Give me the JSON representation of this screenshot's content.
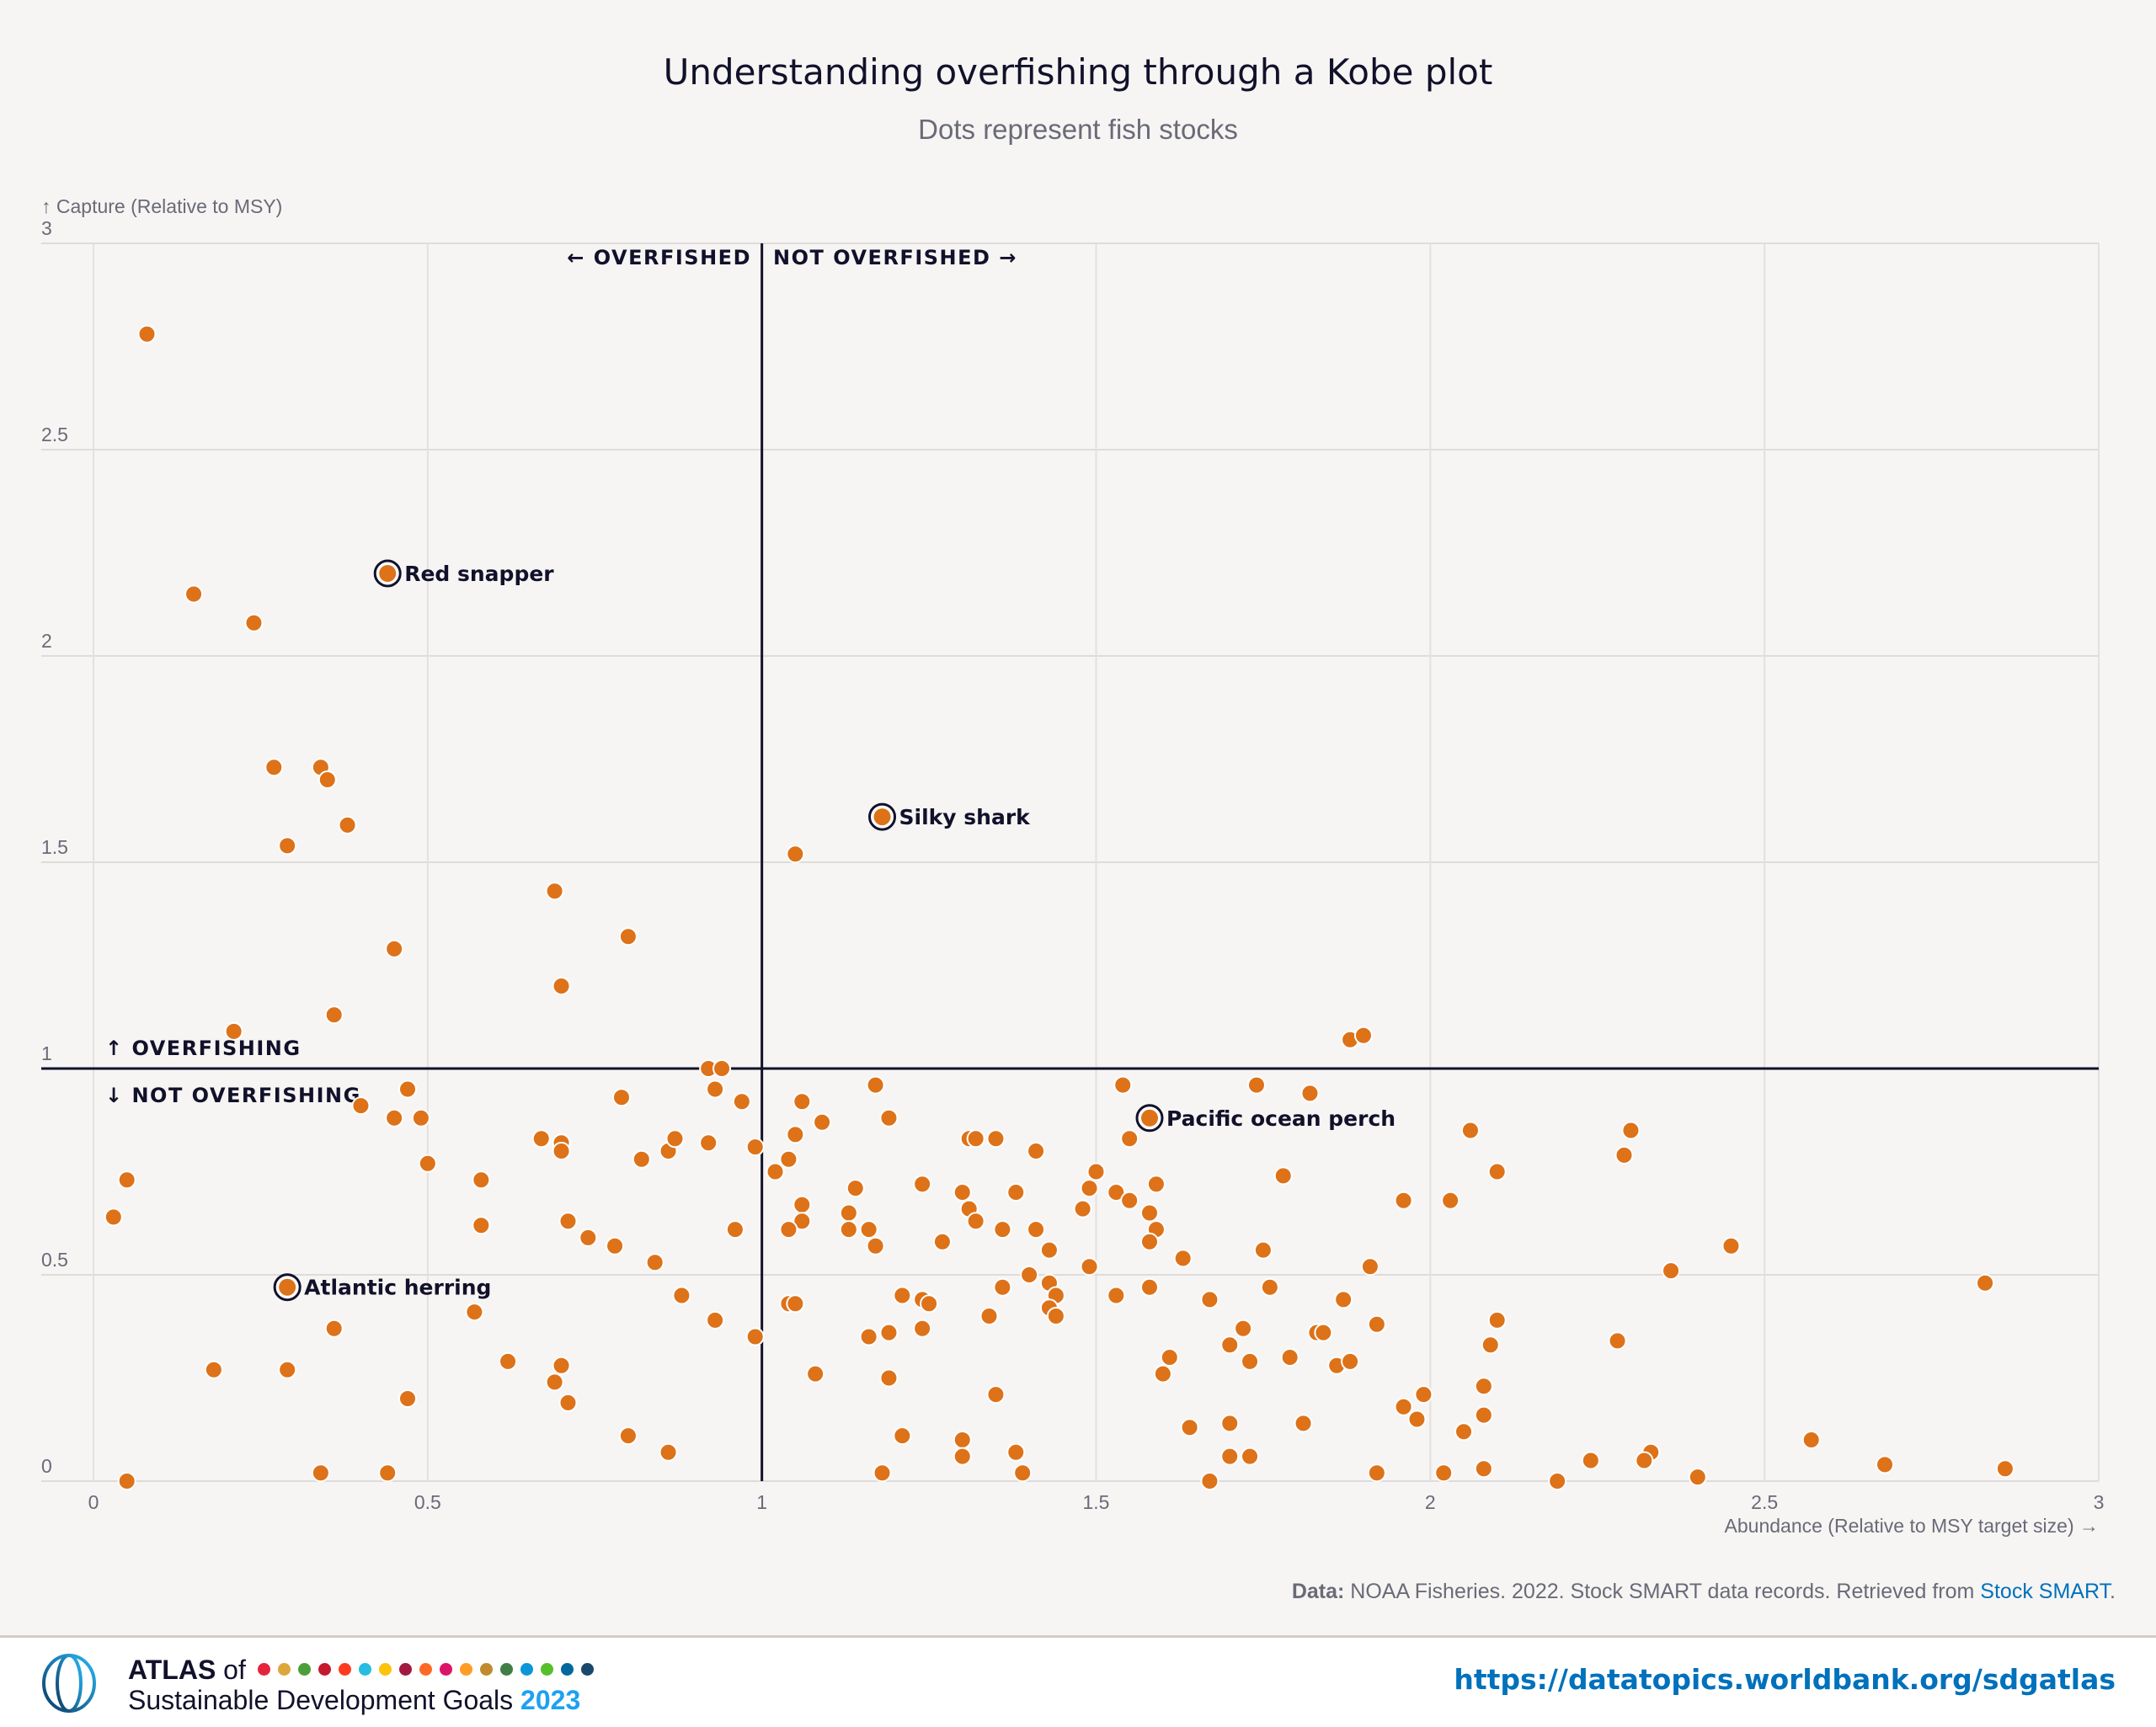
{
  "header": {
    "title": "Understanding overfishing through a Kobe plot",
    "subtitle": "Dots represent fish stocks"
  },
  "chart_data": {
    "type": "scatter",
    "title": "Understanding overfishing through a Kobe plot",
    "subtitle": "Dots represent fish stocks",
    "xlabel": "Abundance (Relative to MSY target size) →",
    "ylabel": "↑ Capture (Relative to MSY)",
    "xlim": [
      0,
      3
    ],
    "ylim": [
      0,
      3
    ],
    "x_ticks": [
      "0",
      "0.5",
      "1",
      "1.5",
      "2",
      "2.5",
      "3"
    ],
    "y_ticks": [
      "0",
      "0.5",
      "1",
      "1.5",
      "2",
      "2.5",
      "3"
    ],
    "grid": true,
    "reference_lines": {
      "x": 1,
      "y": 1
    },
    "quadrant_labels": {
      "overfished": "← OVERFISHED",
      "not_overfished": "NOT OVERFISHED →",
      "overfishing": "↑ OVERFISHING",
      "not_overfishing": "↓ NOT OVERFISHING"
    },
    "point_color": "#dd7219",
    "annotation_ring_color": "#12112b",
    "annotations": [
      {
        "label": "Red snapper",
        "x": 0.44,
        "y": 2.2
      },
      {
        "label": "Silky shark",
        "x": 1.18,
        "y": 1.61
      },
      {
        "label": "Pacific ocean perch",
        "x": 1.58,
        "y": 0.88
      },
      {
        "label": "Atlantic herring",
        "x": 0.29,
        "y": 0.47
      }
    ],
    "points": [
      [
        0.08,
        2.78
      ],
      [
        0.15,
        2.15
      ],
      [
        0.24,
        2.08
      ],
      [
        0.27,
        1.73
      ],
      [
        0.34,
        1.73
      ],
      [
        0.35,
        1.7
      ],
      [
        0.29,
        1.54
      ],
      [
        0.38,
        1.59
      ],
      [
        0.69,
        1.43
      ],
      [
        0.8,
        1.32
      ],
      [
        0.45,
        1.29
      ],
      [
        0.7,
        1.2
      ],
      [
        0.36,
        1.13
      ],
      [
        0.21,
        1.09
      ],
      [
        1.05,
        1.52
      ],
      [
        1.88,
        1.07
      ],
      [
        1.9,
        1.08
      ],
      [
        0.92,
        1.0
      ],
      [
        0.94,
        1.0
      ],
      [
        0.03,
        0.64
      ],
      [
        0.05,
        0.73
      ],
      [
        0.05,
        0.0
      ],
      [
        0.18,
        0.27
      ],
      [
        0.29,
        0.27
      ],
      [
        0.36,
        0.37
      ],
      [
        0.34,
        0.02
      ],
      [
        0.44,
        0.02
      ],
      [
        0.4,
        0.91
      ],
      [
        0.47,
        0.95
      ],
      [
        0.45,
        0.88
      ],
      [
        0.49,
        0.88
      ],
      [
        0.5,
        0.77
      ],
      [
        0.47,
        0.2
      ],
      [
        0.58,
        0.73
      ],
      [
        0.58,
        0.62
      ],
      [
        0.57,
        0.41
      ],
      [
        0.62,
        0.29
      ],
      [
        0.67,
        0.83
      ],
      [
        0.7,
        0.82
      ],
      [
        0.7,
        0.8
      ],
      [
        0.71,
        0.63
      ],
      [
        0.74,
        0.59
      ],
      [
        0.78,
        0.57
      ],
      [
        0.69,
        0.24
      ],
      [
        0.7,
        0.28
      ],
      [
        0.71,
        0.19
      ],
      [
        0.79,
        0.93
      ],
      [
        0.84,
        0.53
      ],
      [
        0.82,
        0.78
      ],
      [
        0.86,
        0.8
      ],
      [
        0.87,
        0.83
      ],
      [
        0.88,
        0.45
      ],
      [
        0.92,
        0.82
      ],
      [
        0.93,
        0.95
      ],
      [
        0.97,
        0.92
      ],
      [
        0.99,
        0.81
      ],
      [
        0.96,
        0.61
      ],
      [
        0.93,
        0.39
      ],
      [
        0.99,
        0.35
      ],
      [
        0.8,
        0.11
      ],
      [
        0.86,
        0.07
      ],
      [
        1.02,
        0.75
      ],
      [
        1.04,
        0.78
      ],
      [
        1.05,
        0.84
      ],
      [
        1.06,
        0.92
      ],
      [
        1.06,
        0.67
      ],
      [
        1.06,
        0.63
      ],
      [
        1.04,
        0.61
      ],
      [
        1.04,
        0.43
      ],
      [
        1.05,
        0.43
      ],
      [
        1.08,
        0.26
      ],
      [
        1.09,
        0.87
      ],
      [
        1.14,
        0.71
      ],
      [
        1.13,
        0.65
      ],
      [
        1.13,
        0.61
      ],
      [
        1.16,
        0.61
      ],
      [
        1.17,
        0.57
      ],
      [
        1.17,
        0.96
      ],
      [
        1.19,
        0.88
      ],
      [
        1.16,
        0.35
      ],
      [
        1.19,
        0.36
      ],
      [
        1.19,
        0.25
      ],
      [
        1.21,
        0.45
      ],
      [
        1.24,
        0.44
      ],
      [
        1.25,
        0.43
      ],
      [
        1.24,
        0.37
      ],
      [
        1.21,
        0.11
      ],
      [
        1.18,
        0.02
      ],
      [
        1.24,
        0.72
      ],
      [
        1.27,
        0.58
      ],
      [
        1.3,
        0.7
      ],
      [
        1.31,
        0.66
      ],
      [
        1.32,
        0.63
      ],
      [
        1.31,
        0.83
      ],
      [
        1.32,
        0.83
      ],
      [
        1.35,
        0.83
      ],
      [
        1.36,
        0.61
      ],
      [
        1.36,
        0.47
      ],
      [
        1.34,
        0.4
      ],
      [
        1.35,
        0.21
      ],
      [
        1.3,
        0.1
      ],
      [
        1.3,
        0.06
      ],
      [
        1.38,
        0.7
      ],
      [
        1.38,
        0.07
      ],
      [
        1.39,
        0.02
      ],
      [
        1.41,
        0.8
      ],
      [
        1.41,
        0.61
      ],
      [
        1.4,
        0.5
      ],
      [
        1.43,
        0.48
      ],
      [
        1.43,
        0.56
      ],
      [
        1.44,
        0.45
      ],
      [
        1.43,
        0.42
      ],
      [
        1.44,
        0.4
      ],
      [
        1.48,
        0.66
      ],
      [
        1.5,
        0.75
      ],
      [
        1.49,
        0.71
      ],
      [
        1.49,
        0.52
      ],
      [
        1.54,
        0.96
      ],
      [
        1.55,
        0.83
      ],
      [
        1.53,
        0.7
      ],
      [
        1.55,
        0.68
      ],
      [
        1.58,
        0.65
      ],
      [
        1.59,
        0.61
      ],
      [
        1.59,
        0.72
      ],
      [
        1.58,
        0.58
      ],
      [
        1.53,
        0.45
      ],
      [
        1.58,
        0.47
      ],
      [
        1.63,
        0.54
      ],
      [
        1.61,
        0.3
      ],
      [
        1.6,
        0.26
      ],
      [
        1.67,
        0.44
      ],
      [
        1.64,
        0.13
      ],
      [
        1.67,
        0.0
      ],
      [
        1.7,
        0.33
      ],
      [
        1.72,
        0.37
      ],
      [
        1.73,
        0.29
      ],
      [
        1.7,
        0.14
      ],
      [
        1.7,
        0.06
      ],
      [
        1.73,
        0.06
      ],
      [
        1.74,
        0.96
      ],
      [
        1.82,
        0.94
      ],
      [
        1.78,
        0.74
      ],
      [
        1.75,
        0.56
      ],
      [
        1.76,
        0.47
      ],
      [
        1.79,
        0.3
      ],
      [
        1.83,
        0.36
      ],
      [
        1.84,
        0.36
      ],
      [
        1.86,
        0.28
      ],
      [
        1.88,
        0.29
      ],
      [
        1.87,
        0.44
      ],
      [
        1.81,
        0.14
      ],
      [
        1.91,
        0.52
      ],
      [
        1.92,
        0.38
      ],
      [
        1.92,
        0.02
      ],
      [
        1.96,
        0.68
      ],
      [
        2.03,
        0.68
      ],
      [
        2.06,
        0.85
      ],
      [
        2.1,
        0.75
      ],
      [
        1.99,
        0.21
      ],
      [
        1.96,
        0.18
      ],
      [
        1.98,
        0.15
      ],
      [
        2.05,
        0.12
      ],
      [
        2.08,
        0.23
      ],
      [
        2.08,
        0.16
      ],
      [
        2.09,
        0.33
      ],
      [
        2.1,
        0.39
      ],
      [
        2.08,
        0.03
      ],
      [
        2.02,
        0.02
      ],
      [
        2.19,
        0.0
      ],
      [
        2.24,
        0.05
      ],
      [
        2.29,
        0.79
      ],
      [
        2.3,
        0.85
      ],
      [
        2.28,
        0.34
      ],
      [
        2.33,
        0.07
      ],
      [
        2.32,
        0.05
      ],
      [
        2.36,
        0.51
      ],
      [
        2.4,
        0.01
      ],
      [
        2.45,
        0.57
      ],
      [
        2.57,
        0.1
      ],
      [
        2.68,
        0.04
      ],
      [
        2.83,
        0.48
      ],
      [
        2.86,
        0.03
      ]
    ]
  },
  "source": {
    "label": "Data:",
    "text": " NOAA Fisheries. 2022. Stock SMART data records. Retrieved from ",
    "link": "Stock SMART",
    "end": "."
  },
  "footer": {
    "atlas": "ATLAS",
    "of": " of",
    "line2": "Sustainable Development Goals ",
    "year": "2023",
    "url": "https://datatopics.worldbank.org/sdgatlas",
    "sdg_colors": [
      "#e5243b",
      "#dda63a",
      "#4c9f38",
      "#c5192d",
      "#ff3a21",
      "#26bde2",
      "#fcc30b",
      "#a21942",
      "#fd6925",
      "#dd1367",
      "#fd9d24",
      "#bf8b2e",
      "#3f7e44",
      "#0a97d9",
      "#56c02b",
      "#00689d",
      "#19486a"
    ]
  }
}
